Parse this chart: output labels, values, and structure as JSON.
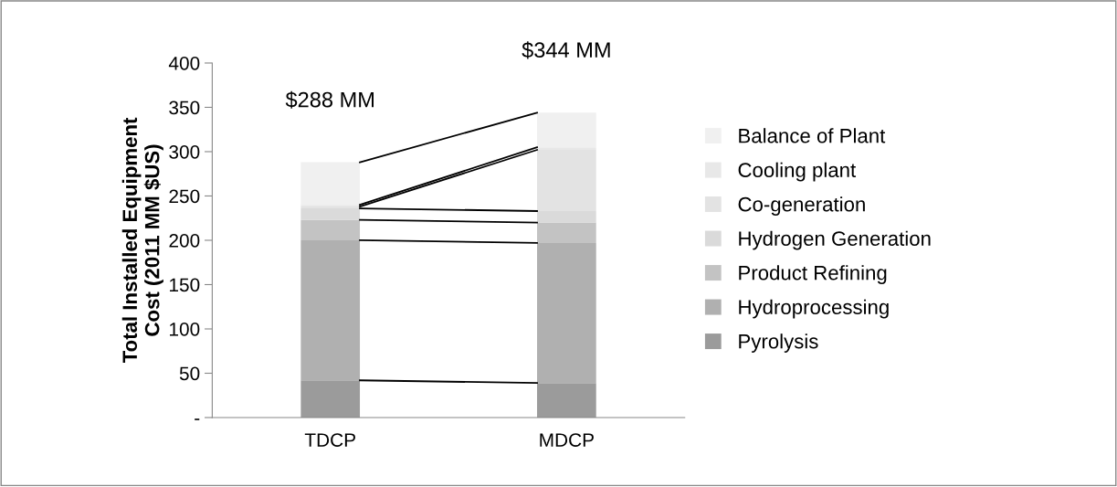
{
  "chart_data": {
    "type": "bar",
    "stacked": true,
    "categories": [
      "TDCP",
      "MDCP"
    ],
    "ylabel": "Total Installed Equipment\nCost (2011 MM $US)",
    "ylim": [
      0,
      400
    ],
    "yticks": [
      {
        "value": 0,
        "label": "-"
      },
      50,
      100,
      150,
      200,
      250,
      300,
      350,
      400
    ],
    "series": [
      {
        "name": "Pyrolysis",
        "color": "#9b9b9b",
        "values": [
          42,
          39
        ]
      },
      {
        "name": "Hydroprocessing",
        "color": "#b0b0b0",
        "values": [
          158,
          158
        ]
      },
      {
        "name": "Product Refining",
        "color": "#c3c3c3",
        "values": [
          23,
          23
        ]
      },
      {
        "name": "Hydrogen Generation",
        "color": "#dadada",
        "values": [
          13,
          13
        ]
      },
      {
        "name": "Co-generation",
        "color": "#e3e3e3",
        "values": [
          2,
          69
        ]
      },
      {
        "name": "Cooling plant",
        "color": "#e8e8e8",
        "values": [
          2,
          3
        ]
      },
      {
        "name": "Balance of Plant",
        "color": "#f0f0f0",
        "values": [
          48,
          39
        ]
      }
    ],
    "annotations": [
      {
        "text": "$288 MM",
        "x": "TDCP",
        "y": 288
      },
      {
        "text": "$344 MM",
        "x": "MDCP",
        "y": 344
      }
    ],
    "legend": "right",
    "grid": false
  }
}
